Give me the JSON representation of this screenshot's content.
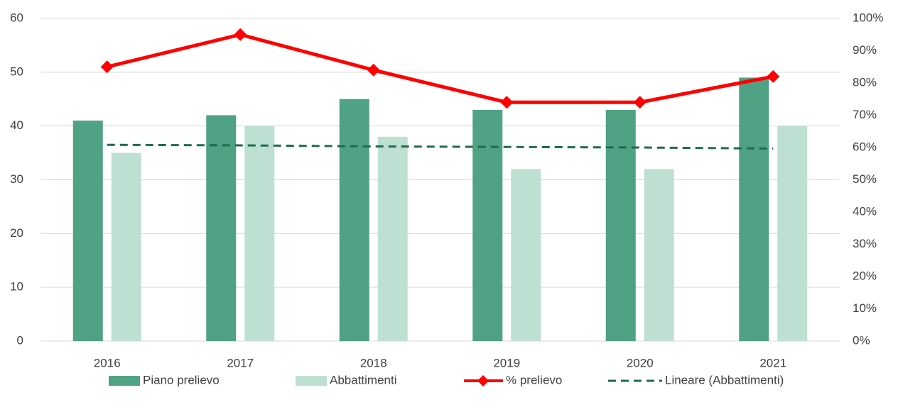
{
  "chart_data": {
    "type": "bar",
    "categories": [
      "2016",
      "2017",
      "2018",
      "2019",
      "2020",
      "2021"
    ],
    "series": [
      {
        "name": "Piano prelievo",
        "color": "#4fa283",
        "type": "bar",
        "values": [
          41,
          42,
          45,
          43,
          43,
          49
        ]
      },
      {
        "name": "Abbattimenti",
        "color": "#bde0d3",
        "type": "bar",
        "values": [
          35,
          40,
          38,
          32,
          32,
          40
        ]
      },
      {
        "name": "% prelievo",
        "color": "#ff0000",
        "type": "line",
        "marker": "diamond",
        "axis": "y2",
        "values": [
          85,
          95,
          84,
          74,
          74,
          82
        ]
      },
      {
        "name": "Lineare (Abbattimenti)",
        "color": "#1e6b4f",
        "type": "line",
        "dashed": true,
        "values": [
          36.5,
          36.4,
          36.2,
          36.1,
          36.0,
          35.8
        ]
      }
    ],
    "ylim": [
      0,
      60
    ],
    "yticks": [
      0,
      10,
      20,
      30,
      40,
      50,
      60
    ],
    "y2lim": [
      0,
      100
    ],
    "y2ticks": [
      {
        "value": 0,
        "label": "0%"
      },
      {
        "value": 10,
        "label": "10%"
      },
      {
        "value": 20,
        "label": "20%"
      },
      {
        "value": 30,
        "label": "30%"
      },
      {
        "value": 40,
        "label": "40%"
      },
      {
        "value": 50,
        "label": "50%"
      },
      {
        "value": 60,
        "label": "60%"
      },
      {
        "value": 70,
        "label": "70%"
      },
      {
        "value": 80,
        "label": "80%"
      },
      {
        "value": 90,
        "label": "90%"
      },
      {
        "value": 100,
        "label": "100%"
      }
    ],
    "grid": true,
    "legend": "bottom"
  }
}
